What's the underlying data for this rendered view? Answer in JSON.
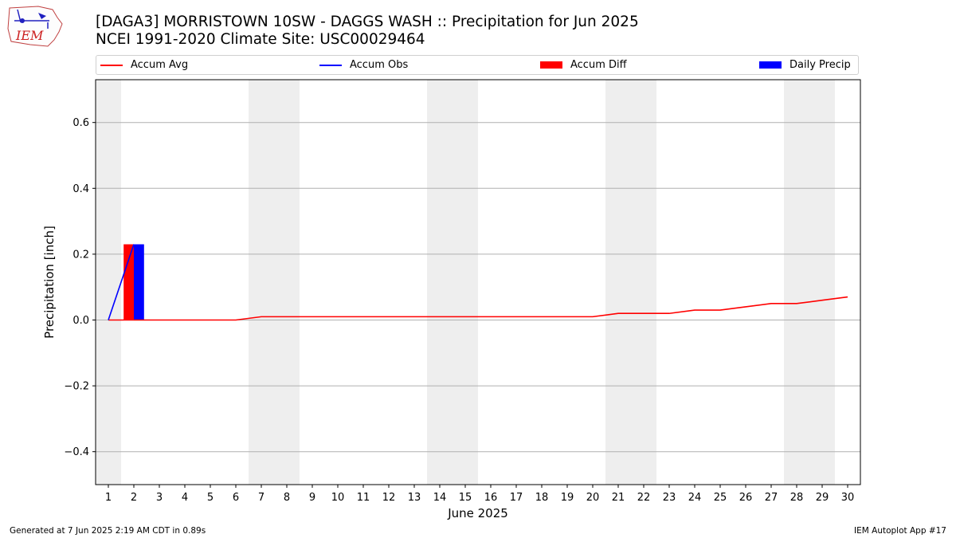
{
  "logo_text": "IEM",
  "title_line1": "[DAGA3] MORRISTOWN 10SW - DAGGS WASH :: Precipitation for Jun 2025",
  "title_line2": "NCEI 1991-2020 Climate Site: USC00029464",
  "legend": {
    "accum_avg": "Accum Avg",
    "accum_obs": "Accum Obs",
    "accum_diff": "Accum Diff",
    "daily_precip": "Daily Precip"
  },
  "footer_left": "Generated at 7 Jun 2025 2:19 AM CDT in 0.89s",
  "footer_right": "IEM Autoplot App #17",
  "colors": {
    "accum_avg": "#ff0000",
    "accum_obs": "#0000ff",
    "accum_diff": "#ff0000",
    "daily_precip": "#0000ff",
    "weekend_shade": "#eeeeee",
    "grid": "#b0b0b0"
  },
  "chart_data": {
    "type": "line",
    "xlabel": "June 2025",
    "ylabel": "Precipitation [inch]",
    "ylim": [
      -0.5,
      0.73
    ],
    "xlim": [
      0.5,
      30.5
    ],
    "grid": "horizontal",
    "legend_placement": "top",
    "x_ticks": [
      1,
      2,
      3,
      4,
      5,
      6,
      7,
      8,
      9,
      10,
      11,
      12,
      13,
      14,
      15,
      16,
      17,
      18,
      19,
      20,
      21,
      22,
      23,
      24,
      25,
      26,
      27,
      28,
      29,
      30
    ],
    "y_ticks": [
      -0.4,
      -0.2,
      0.0,
      0.2,
      0.4,
      0.6
    ],
    "y_tick_labels": [
      "−0.4",
      "−0.2",
      "0.0",
      "0.2",
      "0.4",
      "0.6"
    ],
    "shaded_days": [
      1,
      7,
      8,
      14,
      15,
      21,
      22,
      28,
      29
    ],
    "accum_avg": {
      "x": [
        1,
        2,
        3,
        4,
        5,
        6,
        7,
        8,
        9,
        10,
        11,
        12,
        13,
        14,
        15,
        16,
        17,
        18,
        19,
        20,
        21,
        22,
        23,
        24,
        25,
        26,
        27,
        28,
        29,
        30
      ],
      "y": [
        0.0,
        0.0,
        0.0,
        0.0,
        0.0,
        0.0,
        0.01,
        0.01,
        0.01,
        0.01,
        0.01,
        0.01,
        0.01,
        0.01,
        0.01,
        0.01,
        0.01,
        0.01,
        0.01,
        0.01,
        0.02,
        0.02,
        0.02,
        0.03,
        0.03,
        0.04,
        0.05,
        0.05,
        0.06,
        0.07
      ]
    },
    "accum_obs": {
      "x": [
        1,
        2
      ],
      "y": [
        0.0,
        0.23
      ]
    },
    "accum_diff": {
      "x": [
        2
      ],
      "y": [
        0.23
      ]
    },
    "daily_precip": {
      "x": [
        2
      ],
      "y": [
        0.23
      ]
    }
  }
}
